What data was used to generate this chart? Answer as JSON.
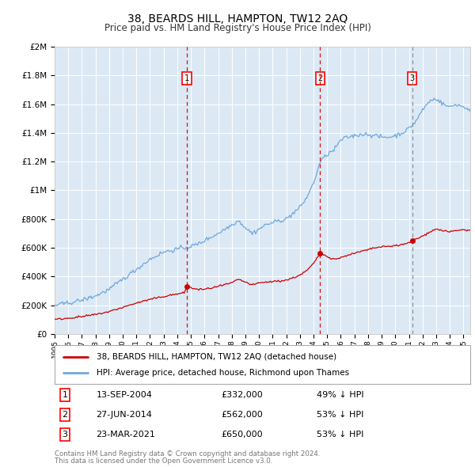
{
  "title": "38, BEARDS HILL, HAMPTON, TW12 2AQ",
  "subtitle": "Price paid vs. HM Land Registry's House Price Index (HPI)",
  "plot_bg_color": "#dce9f5",
  "hpi_color": "#6fa8dc",
  "price_color": "#cc0000",
  "sale3_vline_color": "#888888",
  "ylim": [
    0,
    2000000
  ],
  "yticks": [
    0,
    200000,
    400000,
    600000,
    800000,
    1000000,
    1200000,
    1400000,
    1600000,
    1800000,
    2000000
  ],
  "ytick_labels": [
    "£0",
    "£200K",
    "£400K",
    "£600K",
    "£800K",
    "£1M",
    "£1.2M",
    "£1.4M",
    "£1.6M",
    "£1.8M",
    "£2M"
  ],
  "xstart": 1995.0,
  "xend": 2025.5,
  "xtick_labels": [
    "1995",
    "1996",
    "1997",
    "1998",
    "1999",
    "2000",
    "2001",
    "2002",
    "2003",
    "2004",
    "2005",
    "2006",
    "2007",
    "2008",
    "2009",
    "2010",
    "2011",
    "2012",
    "2013",
    "2014",
    "2015",
    "2016",
    "2017",
    "2018",
    "2019",
    "2020",
    "2021",
    "2022",
    "2023",
    "2024",
    "2025"
  ],
  "sales": [
    {
      "index": 1,
      "date": "13-SEP-2004",
      "x": 2004.71,
      "price": 332000,
      "label": "£332,000",
      "pct": "49% ↓ HPI",
      "vline_color": "#cc0000"
    },
    {
      "index": 2,
      "date": "27-JUN-2014",
      "x": 2014.49,
      "price": 562000,
      "label": "£562,000",
      "pct": "53% ↓ HPI",
      "vline_color": "#cc0000"
    },
    {
      "index": 3,
      "date": "23-MAR-2021",
      "x": 2021.23,
      "price": 650000,
      "label": "£650,000",
      "pct": "53% ↓ HPI",
      "vline_color": "#888888"
    }
  ],
  "legend_label1": "38, BEARDS HILL, HAMPTON, TW12 2AQ (detached house)",
  "legend_label2": "HPI: Average price, detached house, Richmond upon Thames",
  "footer1": "Contains HM Land Registry data © Crown copyright and database right 2024.",
  "footer2": "This data is licensed under the Open Government Licence v3.0."
}
